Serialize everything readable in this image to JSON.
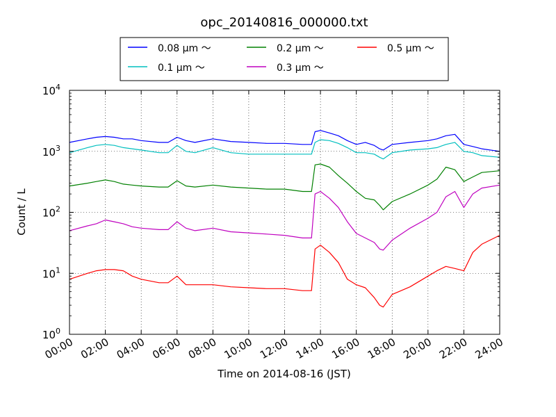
{
  "chart_data": {
    "type": "line",
    "title": "opc_20140816_000000.txt",
    "xlabel": "Time on 2014-08-16 (JST)",
    "ylabel": "Count / L",
    "x_range_hours": [
      0,
      24
    ],
    "x_tick_hours": [
      0,
      2,
      4,
      6,
      8,
      10,
      12,
      14,
      16,
      18,
      20,
      22,
      24
    ],
    "x_tick_labels": [
      "00:00",
      "02:00",
      "04:00",
      "06:00",
      "08:00",
      "10:00",
      "12:00",
      "14:00",
      "16:00",
      "18:00",
      "20:00",
      "22:00",
      "24:00"
    ],
    "y_scale": "log",
    "ylim": [
      1,
      10000
    ],
    "y_tick_values": [
      1,
      10,
      100,
      1000,
      10000
    ],
    "y_tick_bases": [
      "10",
      "10",
      "10",
      "10",
      "10"
    ],
    "y_tick_exponents": [
      "0",
      "1",
      "2",
      "3",
      "4"
    ],
    "grid": true,
    "legend_position": "top-center",
    "legend_columns": 3,
    "x": [
      0,
      1,
      1.5,
      2,
      2.5,
      3,
      3.5,
      4,
      5,
      5.5,
      6,
      6.5,
      7,
      8,
      9,
      10,
      11,
      12,
      13,
      13.5,
      13.7,
      14,
      14.5,
      15,
      15.5,
      16,
      16.5,
      17,
      17.3,
      17.5,
      18,
      19,
      20,
      20.5,
      21,
      21.5,
      22,
      22.5,
      23,
      24
    ],
    "series": [
      {
        "name": "0.08 μm ～",
        "color": "#0000ff",
        "values": [
          1400,
          1600,
          1700,
          1750,
          1700,
          1600,
          1600,
          1500,
          1400,
          1400,
          1700,
          1500,
          1400,
          1600,
          1450,
          1400,
          1350,
          1350,
          1300,
          1300,
          2100,
          2200,
          2000,
          1800,
          1500,
          1300,
          1400,
          1250,
          1100,
          1050,
          1300,
          1400,
          1500,
          1600,
          1800,
          1900,
          1300,
          1200,
          1100,
          1000
        ]
      },
      {
        "name": "0.1 μm ～",
        "color": "#00bfbf",
        "values": [
          950,
          1150,
          1250,
          1300,
          1250,
          1150,
          1100,
          1050,
          950,
          950,
          1250,
          1000,
          950,
          1150,
          950,
          900,
          900,
          900,
          900,
          900,
          1400,
          1550,
          1500,
          1350,
          1150,
          950,
          950,
          900,
          800,
          750,
          950,
          1050,
          1100,
          1150,
          1300,
          1400,
          1000,
          950,
          850,
          800
        ]
      },
      {
        "name": "0.2 μm ～",
        "color": "#008000",
        "values": [
          270,
          300,
          320,
          340,
          320,
          290,
          280,
          270,
          260,
          260,
          330,
          270,
          260,
          280,
          260,
          250,
          240,
          240,
          220,
          220,
          600,
          620,
          550,
          400,
          300,
          220,
          170,
          160,
          130,
          110,
          150,
          200,
          280,
          350,
          550,
          500,
          320,
          380,
          450,
          480
        ]
      },
      {
        "name": "0.3 μm ～",
        "color": "#bf00bf",
        "values": [
          50,
          60,
          65,
          75,
          70,
          65,
          58,
          55,
          52,
          52,
          70,
          55,
          50,
          55,
          48,
          46,
          44,
          42,
          38,
          38,
          200,
          220,
          170,
          120,
          70,
          45,
          38,
          32,
          25,
          24,
          35,
          55,
          80,
          100,
          180,
          220,
          120,
          200,
          250,
          280
        ]
      },
      {
        "name": "0.5 μm ～",
        "color": "#ff0000",
        "values": [
          8,
          10,
          11,
          11.5,
          11.5,
          11,
          9,
          8,
          7,
          7,
          9,
          6.5,
          6.5,
          6.5,
          6,
          5.8,
          5.6,
          5.6,
          5.2,
          5.2,
          25,
          29,
          22,
          15,
          8,
          6.5,
          5.8,
          4,
          3,
          2.8,
          4.5,
          6,
          9,
          11,
          13,
          12,
          11,
          22,
          30,
          42
        ]
      }
    ]
  }
}
